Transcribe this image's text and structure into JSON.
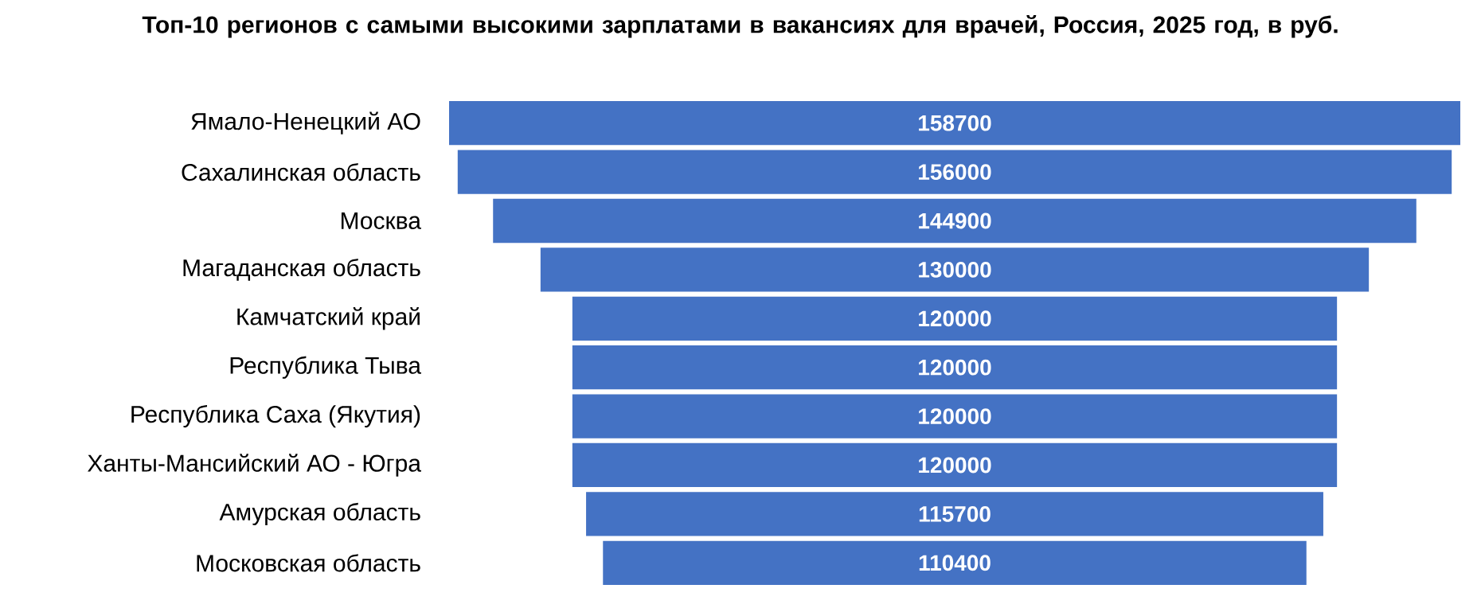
{
  "chart_data": {
    "type": "other",
    "title": "Топ-10 регионов с самыми высокими зарплатами в вакансиях для врачей, Россия, 2025 год, в руб.",
    "categories": [
      "Ямало-Ненецкий АО",
      "Сахалинская область",
      "Москва",
      "Магаданская область",
      "Камчатский край",
      "Республика Тыва",
      "Республика Саха (Якутия)",
      "Ханты-Мансийский АО - Югра",
      "Амурская область",
      "Московская область"
    ],
    "values": [
      158700,
      156000,
      144900,
      130000,
      120000,
      120000,
      120000,
      120000,
      115700,
      110400
    ],
    "color": "#4472c4",
    "data_labels": true
  }
}
